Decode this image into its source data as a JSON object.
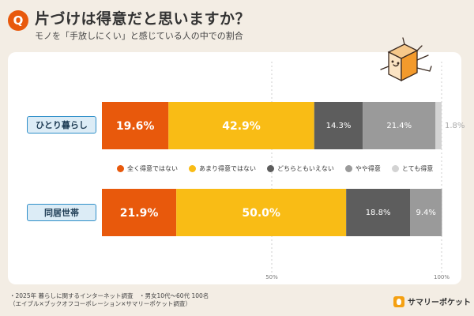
{
  "header": {
    "badge": "Q",
    "title": "片づけは得意だと思いますか？",
    "subtitle": "モノを「手放しにくい」と感じている人の中での割合"
  },
  "chart_data": {
    "type": "bar",
    "orientation": "horizontal-stacked",
    "categories": [
      "ひとり暮らし",
      "同居世帯"
    ],
    "series": [
      {
        "name": "全く得意ではない",
        "color": "#e8590c",
        "values": [
          19.6,
          21.9
        ]
      },
      {
        "name": "あまり得意ではない",
        "color": "#f9bc15",
        "values": [
          42.9,
          50.0
        ]
      },
      {
        "name": "どちらともいえない",
        "color": "#5d5d5d",
        "values": [
          14.3,
          18.8
        ]
      },
      {
        "name": "やや得意",
        "color": "#9a9a9a",
        "values": [
          21.4,
          9.4
        ]
      },
      {
        "name": "とても得意",
        "color": "#d3d3d3",
        "values": [
          1.8,
          0.0
        ]
      }
    ],
    "value_labels": [
      [
        "19.6%",
        "42.9%",
        "14.3%",
        "21.4%",
        "1.8%"
      ],
      [
        "21.9%",
        "50.0%",
        "18.8%",
        "9.4%",
        ""
      ]
    ],
    "axis_ticks": [
      "50%",
      "100%"
    ],
    "xlim": [
      0,
      100
    ]
  },
  "footnote": {
    "line1": "・2025年 暮らしに関するインターネット調査　・男女10代～60代 100名",
    "line2": "（エイブル×ブックオフコーポレーション×サマリーポケット調査）"
  },
  "brand": {
    "name": "サマリーポケット"
  }
}
